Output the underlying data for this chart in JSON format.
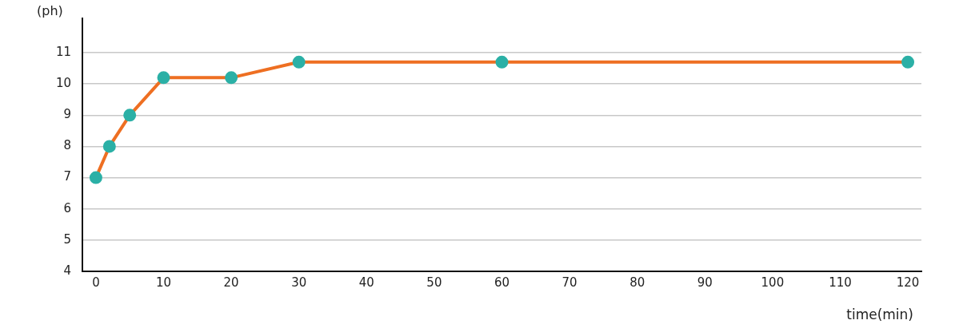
{
  "chart_data": {
    "type": "line",
    "xlabel": "time(min)",
    "ylabel": "(ph)",
    "x": [
      0,
      2,
      5,
      10,
      20,
      30,
      60,
      120
    ],
    "series": [
      {
        "color": "#ee6f22",
        "colors": [
          "#2bb0a6",
          "#2bb0a6",
          "#2bb0a6",
          "#2bb0a6",
          "#2bb0a6",
          "#2bb0a6",
          "#2bb0a6",
          "#2bb0a6"
        ],
        "values": [
          7,
          8,
          9,
          10.2,
          10.2,
          10.7,
          10.7,
          10.7
        ]
      }
    ],
    "xlim": [
      -2,
      122
    ],
    "xticks": [
      0,
      10,
      20,
      30,
      40,
      50,
      60,
      70,
      80,
      90,
      100,
      110,
      120
    ],
    "ylim": [
      4,
      12.1
    ],
    "yticks": [
      4,
      5,
      6,
      7,
      8,
      9,
      10,
      11
    ],
    "grid": "y",
    "legend": false,
    "marker": "circle",
    "line_style": "solid"
  }
}
